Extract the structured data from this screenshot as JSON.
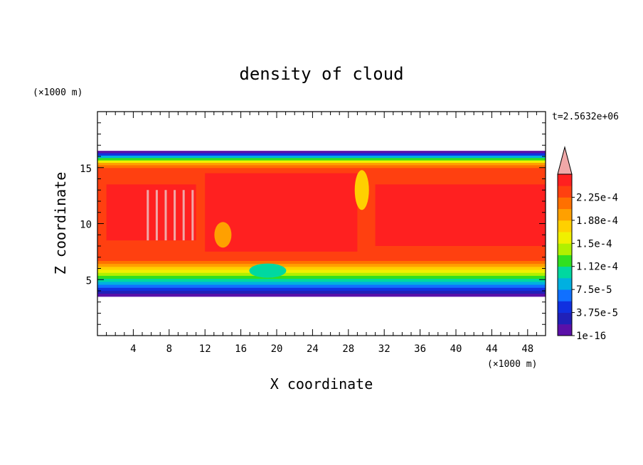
{
  "chart_data": {
    "type": "heatmap",
    "title": "density of cloud",
    "xlabel": "X coordinate",
    "ylabel": "Z coordinate",
    "x_unit": "(×1000 m)",
    "y_unit": "(×1000 m)",
    "time_label": "t=2.5632e+06",
    "xlim": [
      0,
      50
    ],
    "ylim": [
      0,
      20
    ],
    "x_ticks": [
      "4",
      "8",
      "12",
      "16",
      "20",
      "24",
      "28",
      "32",
      "36",
      "40",
      "44",
      "48"
    ],
    "x_tick_values": [
      4,
      8,
      12,
      16,
      20,
      24,
      28,
      32,
      36,
      40,
      44,
      48
    ],
    "y_ticks": [
      "5",
      "10",
      "15"
    ],
    "y_tick_values": [
      5,
      10,
      15
    ],
    "colorbar": {
      "labels": [
        "1e-16",
        "3.75e-5",
        "7.5e-5",
        "1.12e-4",
        "1.5e-4",
        "1.88e-4",
        "2.25e-4"
      ],
      "colors": [
        "#5a10a8",
        "#2020b8",
        "#1030e0",
        "#1070ff",
        "#00b0e0",
        "#00d8a0",
        "#30e020",
        "#b0f000",
        "#f0f000",
        "#ffd000",
        "#ffa000",
        "#ff7000",
        "#ff4010",
        "#ff2020"
      ],
      "overflow_color": "#f0a8a8"
    },
    "cloud_layer": {
      "z_bottom": 3.5,
      "z_top": 16.5
    }
  }
}
